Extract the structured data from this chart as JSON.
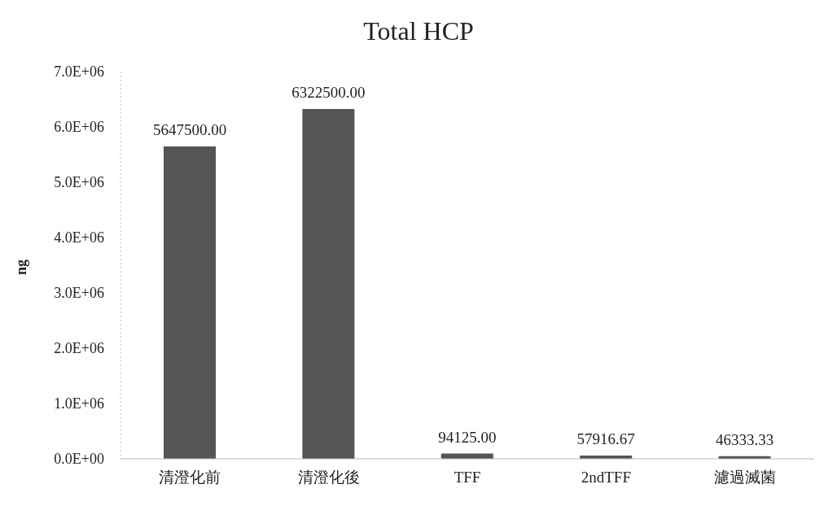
{
  "chart_data": {
    "type": "bar",
    "title": "Total HCP",
    "ylabel": "ng",
    "categories": [
      "清澄化前",
      "清澄化後",
      "TFF",
      "2ndTFF",
      "濾過滅菌"
    ],
    "values": [
      5647500,
      6322500,
      94125,
      57916.67,
      46333.33
    ],
    "value_labels": [
      "5647500.00",
      "6322500.00",
      "94125.00",
      "57916.67",
      "46333.33"
    ],
    "color": "#555555",
    "ylim": [
      0,
      7000000
    ],
    "yticks": [
      {
        "value": 0,
        "label": "0.0E+00"
      },
      {
        "value": 1000000,
        "label": "1.0E+06"
      },
      {
        "value": 2000000,
        "label": "2.0E+06"
      },
      {
        "value": 3000000,
        "label": "3.0E+06"
      },
      {
        "value": 4000000,
        "label": "4.0E+06"
      },
      {
        "value": 5000000,
        "label": "5.0E+06"
      },
      {
        "value": 6000000,
        "label": "6.0E+06"
      },
      {
        "value": 7000000,
        "label": "7.0E+06"
      }
    ],
    "grid": false,
    "legend": false
  }
}
